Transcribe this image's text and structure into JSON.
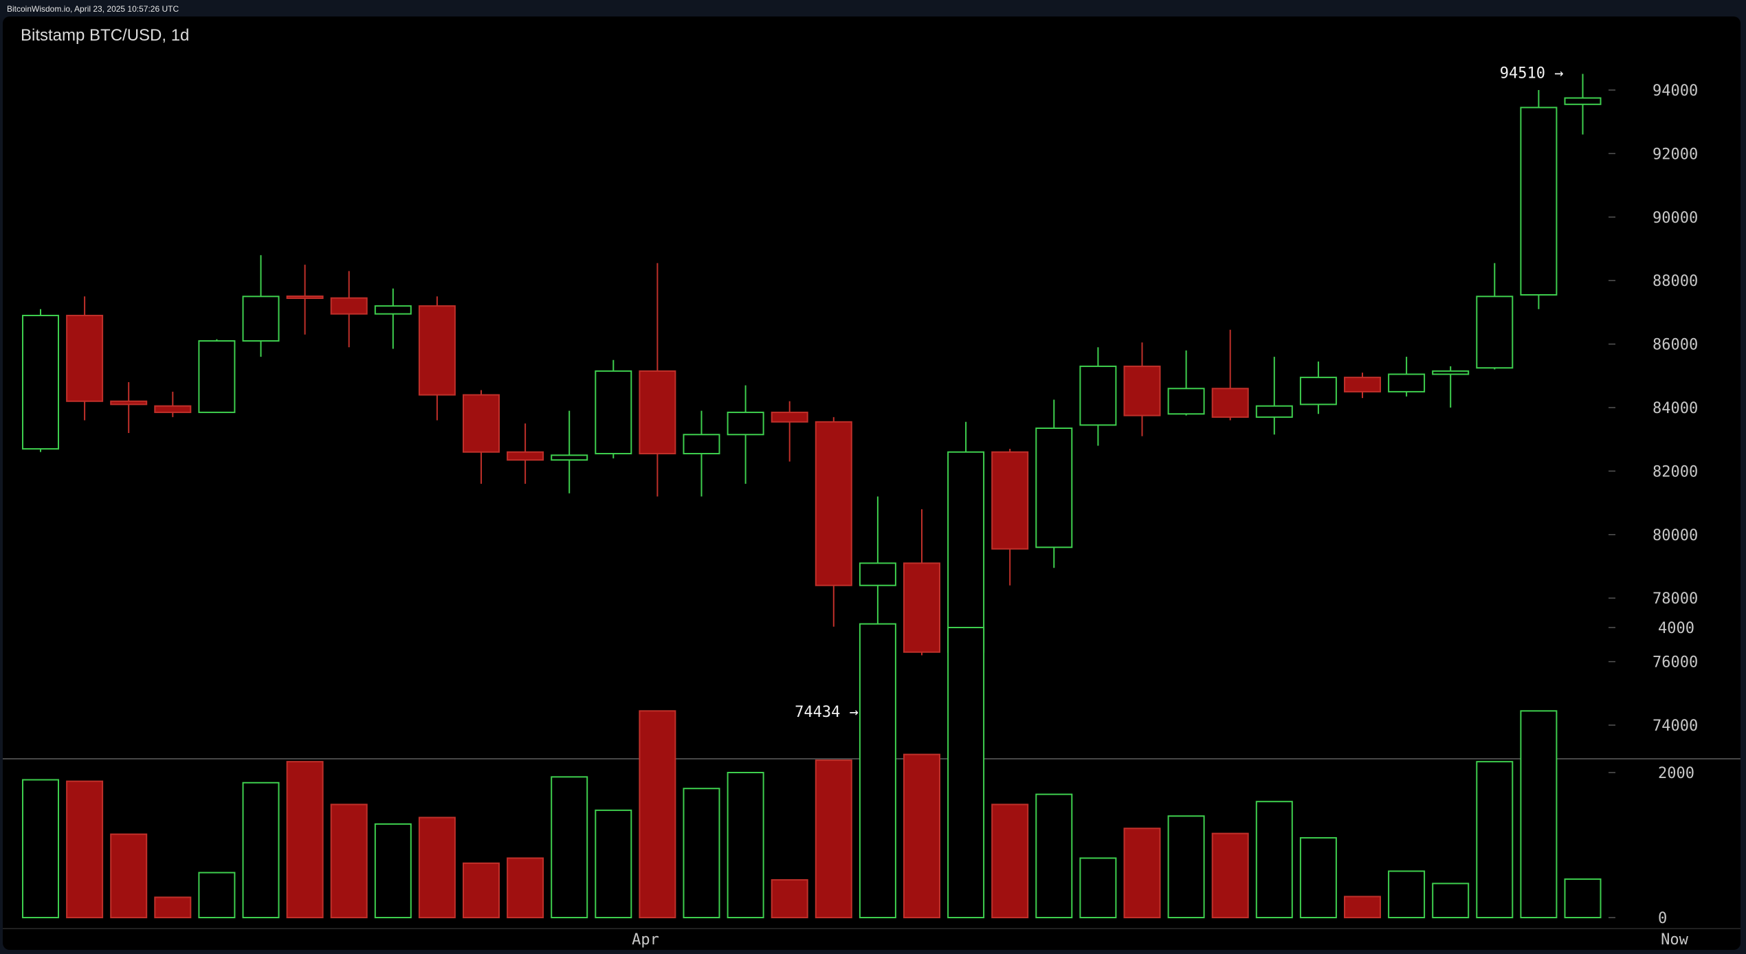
{
  "source": "BitcoinWisdom.io, April 23, 2025 10:57:26 UTC",
  "chart_data": {
    "type": "candlestick",
    "title": "Bitstamp BTC/USD, 1d",
    "price_axis": {
      "ticks": [
        74000,
        76000,
        78000,
        80000,
        82000,
        84000,
        86000,
        88000,
        90000,
        92000,
        94000
      ]
    },
    "volume_axis": {
      "ticks": [
        0,
        2000,
        4000
      ]
    },
    "x_labels": [
      "Apr",
      "Now"
    ],
    "annotations": [
      {
        "text": "94510 →",
        "value": 94510
      },
      {
        "text": "74434 →",
        "value": 74434
      }
    ],
    "colors": {
      "up": "#3ecf4e",
      "down": "#a01010",
      "down_edge": "#c0302a"
    },
    "candles": [
      {
        "o": 82700,
        "h": 87100,
        "l": 82600,
        "c": 86900,
        "v": 1900
      },
      {
        "o": 86900,
        "h": 87500,
        "l": 83600,
        "c": 84200,
        "v": 1880
      },
      {
        "o": 84200,
        "h": 84800,
        "l": 83200,
        "c": 84100,
        "v": 1150
      },
      {
        "o": 84050,
        "h": 84500,
        "l": 83700,
        "c": 83850,
        "v": 280
      },
      {
        "o": 83850,
        "h": 86150,
        "l": 83850,
        "c": 86100,
        "v": 620
      },
      {
        "o": 86100,
        "h": 88800,
        "l": 85600,
        "c": 87500,
        "v": 1860
      },
      {
        "o": 87500,
        "h": 88500,
        "l": 86300,
        "c": 87450,
        "v": 2150
      },
      {
        "o": 87450,
        "h": 88300,
        "l": 85900,
        "c": 86950,
        "v": 1560
      },
      {
        "o": 86950,
        "h": 87750,
        "l": 85850,
        "c": 87200,
        "v": 1290
      },
      {
        "o": 87200,
        "h": 87500,
        "l": 83600,
        "c": 84400,
        "v": 1380
      },
      {
        "o": 84400,
        "h": 84550,
        "l": 81600,
        "c": 82600,
        "v": 750
      },
      {
        "o": 82600,
        "h": 83500,
        "l": 81600,
        "c": 82350,
        "v": 820
      },
      {
        "o": 82350,
        "h": 83900,
        "l": 81300,
        "c": 82500,
        "v": 1940
      },
      {
        "o": 82550,
        "h": 85500,
        "l": 82400,
        "c": 85150,
        "v": 1480
      },
      {
        "o": 85150,
        "h": 88550,
        "l": 81200,
        "c": 82550,
        "v": 2850
      },
      {
        "o": 82550,
        "h": 83900,
        "l": 81200,
        "c": 83150,
        "v": 1780
      },
      {
        "o": 83150,
        "h": 84700,
        "l": 81600,
        "c": 83850,
        "v": 2000
      },
      {
        "o": 83850,
        "h": 84200,
        "l": 82300,
        "c": 83550,
        "v": 520
      },
      {
        "o": 83550,
        "h": 83700,
        "l": 77100,
        "c": 78400,
        "v": 2170
      },
      {
        "o": 78400,
        "h": 81200,
        "l": 74434,
        "c": 79100,
        "v": 4050
      },
      {
        "o": 79100,
        "h": 80800,
        "l": 76200,
        "c": 76300,
        "v": 2250
      },
      {
        "o": 76300,
        "h": 83550,
        "l": 74600,
        "c": 82600,
        "v": 4000
      },
      {
        "o": 82600,
        "h": 82700,
        "l": 78400,
        "c": 79550,
        "v": 1560
      },
      {
        "o": 79600,
        "h": 84250,
        "l": 78950,
        "c": 83350,
        "v": 1700
      },
      {
        "o": 83450,
        "h": 85900,
        "l": 82800,
        "c": 85300,
        "v": 820
      },
      {
        "o": 85300,
        "h": 86050,
        "l": 83100,
        "c": 83750,
        "v": 1230
      },
      {
        "o": 83800,
        "h": 85800,
        "l": 83750,
        "c": 84600,
        "v": 1400
      },
      {
        "o": 84600,
        "h": 86450,
        "l": 83600,
        "c": 83700,
        "v": 1160
      },
      {
        "o": 83700,
        "h": 85600,
        "l": 83150,
        "c": 84050,
        "v": 1600
      },
      {
        "o": 84100,
        "h": 85450,
        "l": 83800,
        "c": 84950,
        "v": 1100
      },
      {
        "o": 84950,
        "h": 85100,
        "l": 84300,
        "c": 84500,
        "v": 290
      },
      {
        "o": 84500,
        "h": 85600,
        "l": 84350,
        "c": 85050,
        "v": 640
      },
      {
        "o": 85050,
        "h": 85300,
        "l": 84000,
        "c": 85150,
        "v": 470
      },
      {
        "o": 85250,
        "h": 88550,
        "l": 85200,
        "c": 87500,
        "v": 2150
      },
      {
        "o": 87550,
        "h": 94000,
        "l": 87100,
        "c": 93450,
        "v": 2850
      },
      {
        "o": 93550,
        "h": 94510,
        "l": 92600,
        "c": 93750,
        "v": 530
      }
    ]
  }
}
